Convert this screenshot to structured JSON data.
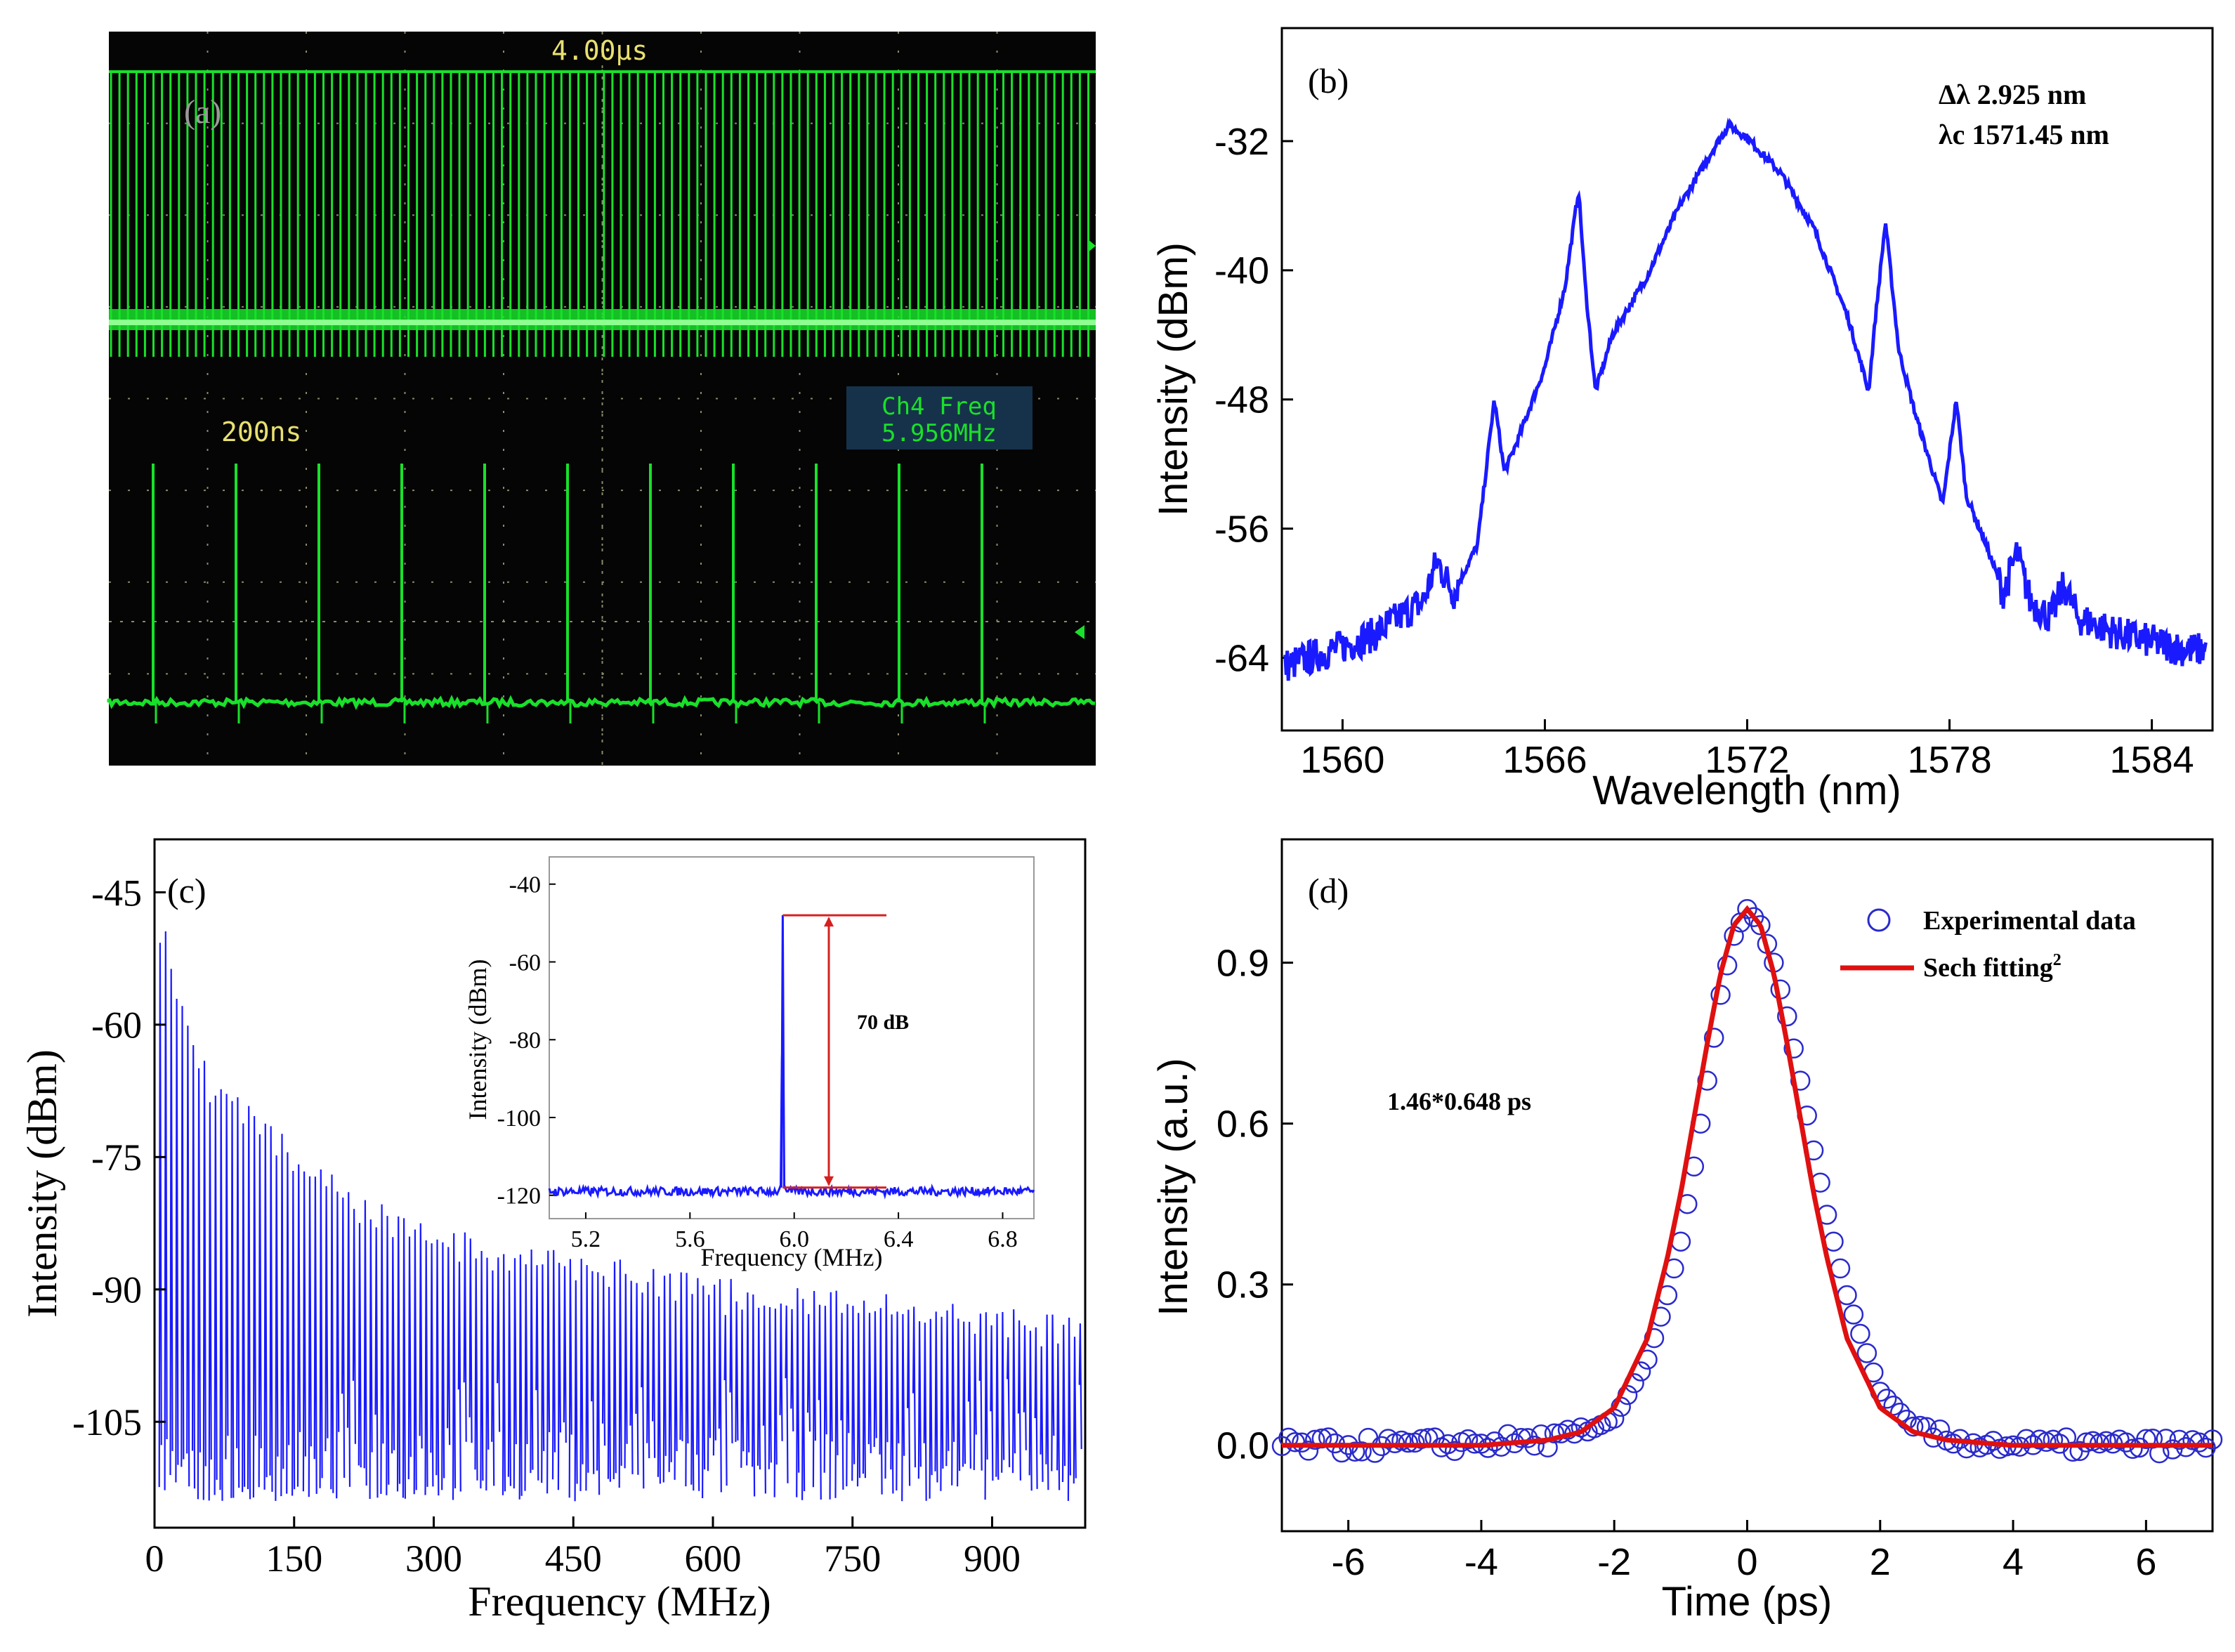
{
  "panels": {
    "a": {
      "label": "(a)",
      "top_timebase": "4.00µs",
      "bottom_timebase": "200ns",
      "freq_box": {
        "title": "Ch4 Freq",
        "value": "5.956MHz"
      },
      "colors": {
        "trace": "#19e02a",
        "background": "#050505",
        "grid": "#8a8a6a"
      },
      "type": "oscilloscope"
    },
    "b": {
      "label": "(b)",
      "annotations": [
        "Δλ 2.925 nm",
        "λc 1571.45 nm"
      ]
    },
    "c": {
      "label": "(c)",
      "inset_annotation": "70 dB"
    },
    "d": {
      "label": "(d)",
      "annotation": "1.46*0.648 ps"
    }
  },
  "chart_data": [
    {
      "id": "b",
      "type": "line",
      "xlabel": "Wavelength (nm)",
      "ylabel": "Intensity (dBm)",
      "xlim": [
        1558.2,
        1585.8
      ],
      "ylim": [
        -68.5,
        -25.0
      ],
      "x_ticks": [
        1560,
        1566,
        1572,
        1578,
        1584
      ],
      "y_ticks": [
        -64,
        -56,
        -48,
        -40,
        -32
      ],
      "series": [
        {
          "color": "#1a1aff",
          "x": [
            1558.3,
            1559.0,
            1560.0,
            1561.0,
            1561.8,
            1562.4,
            1562.8,
            1563.3,
            1564.0,
            1564.5,
            1564.8,
            1565.2,
            1566.0,
            1566.6,
            1567.0,
            1567.2,
            1567.5,
            1568.0,
            1569.0,
            1570.0,
            1571.0,
            1571.45,
            1572.0,
            1573.0,
            1574.0,
            1575.0,
            1575.6,
            1575.8,
            1576.1,
            1576.5,
            1577.0,
            1577.8,
            1578.2,
            1578.5,
            1579.0,
            1579.6,
            1580.0,
            1580.4,
            1581.0,
            1581.4,
            1581.8,
            1583.0,
            1584.0,
            1585.0,
            1585.6
          ],
          "y": [
            -64.5,
            -64.0,
            -63.3,
            -62.5,
            -61.3,
            -60.5,
            -58.0,
            -60.0,
            -57.0,
            -48.0,
            -52.5,
            -50.5,
            -46.0,
            -41.0,
            -35.0,
            -41.0,
            -47.5,
            -44.0,
            -40.5,
            -36.0,
            -32.5,
            -31.0,
            -31.8,
            -34.0,
            -37.5,
            -43.0,
            -47.5,
            -43.0,
            -37.0,
            -45.0,
            -49.0,
            -54.5,
            -48.0,
            -54.0,
            -56.5,
            -60.0,
            -57.5,
            -60.5,
            -61.5,
            -59.5,
            -61.5,
            -62.5,
            -63.0,
            -63.5,
            -63.5
          ]
        }
      ]
    },
    {
      "id": "c",
      "type": "line",
      "xlabel": "Frequency (MHz)",
      "ylabel": "Intensity (dBm)",
      "xlim": [
        0,
        1000
      ],
      "ylim": [
        -117,
        -39
      ],
      "x_ticks": [
        0,
        150,
        300,
        450,
        600,
        750,
        900
      ],
      "y_ticks": [
        -105,
        -90,
        -75,
        -60,
        -45
      ],
      "series": [
        {
          "color": "#1a1aff",
          "x": [
            5.956,
            50,
            100,
            200,
            300,
            400,
            500,
            600,
            700,
            800,
            900,
            1000
          ],
          "y": [
            -48,
            -65,
            -70,
            -79,
            -84,
            -86,
            -88,
            -90,
            -91,
            -92,
            -93,
            -94
          ]
        }
      ],
      "noise_floor": -114,
      "comb_spacing_mhz": 5.956
    },
    {
      "id": "c-inset",
      "type": "line",
      "xlabel": "Frequency (MHz)",
      "ylabel": "Intensity (dBm)",
      "xlim": [
        5.06,
        6.92
      ],
      "ylim": [
        -126,
        -33
      ],
      "x_ticks": [
        5.2,
        5.6,
        6.0,
        6.4,
        6.8
      ],
      "y_ticks": [
        -120,
        -100,
        -80,
        -60,
        -40
      ],
      "series": [
        {
          "color": "#1a1aff",
          "x": [
            5.06,
            5.5,
            5.94,
            5.95,
            5.956,
            5.96,
            5.97,
            6.4,
            6.92
          ],
          "y": [
            -119,
            -119,
            -119,
            -117,
            -48,
            -117,
            -119,
            -119,
            -119
          ]
        }
      ],
      "marker": {
        "color": "#d62020",
        "top": -48,
        "bottom": -118
      }
    },
    {
      "id": "d",
      "type": "line",
      "xlabel": "Time (ps)",
      "ylabel": "Intensity (a.u.)",
      "xlim": [
        -7,
        7
      ],
      "ylim": [
        -0.16,
        1.13
      ],
      "x_ticks": [
        -6,
        -4,
        -2,
        0,
        2,
        4,
        6
      ],
      "y_ticks": [
        0.0,
        0.3,
        0.6,
        0.9
      ],
      "series": [
        {
          "name": "Experimental data",
          "color": "#2a2acc",
          "marker": "circle",
          "x": [
            -7.0,
            -6.0,
            -5.0,
            -4.0,
            -3.0,
            -2.5,
            -2.0,
            -1.5,
            -1.2,
            -1.0,
            -0.8,
            -0.6,
            -0.4,
            -0.2,
            0.0,
            0.2,
            0.4,
            0.6,
            0.8,
            1.0,
            1.2,
            1.5,
            2.0,
            2.5,
            3.0,
            4.0,
            5.0,
            6.0,
            7.0
          ],
          "y": [
            0.0,
            0.0,
            0.0,
            0.005,
            0.01,
            0.02,
            0.05,
            0.16,
            0.28,
            0.38,
            0.52,
            0.68,
            0.84,
            0.95,
            1.0,
            0.97,
            0.9,
            0.8,
            0.68,
            0.55,
            0.43,
            0.28,
            0.1,
            0.035,
            0.01,
            0.0,
            0.0,
            0.0,
            0.0
          ]
        },
        {
          "name": "Sech fitting",
          "superscript": "2",
          "color": "#e01010",
          "x": [
            -7.0,
            -6.0,
            -5.0,
            -4.0,
            -3.0,
            -2.5,
            -2.0,
            -1.5,
            -1.2,
            -1.0,
            -0.8,
            -0.6,
            -0.4,
            -0.2,
            0.0,
            0.2,
            0.4,
            0.6,
            0.8,
            1.0,
            1.2,
            1.5,
            2.0,
            2.5,
            3.0,
            4.0,
            5.0,
            6.0,
            7.0
          ],
          "y": [
            0.0,
            0.0,
            0.0,
            0.0,
            0.01,
            0.025,
            0.07,
            0.2,
            0.35,
            0.47,
            0.61,
            0.75,
            0.88,
            0.97,
            1.0,
            0.97,
            0.88,
            0.75,
            0.61,
            0.47,
            0.35,
            0.2,
            0.07,
            0.025,
            0.01,
            0.0,
            0.0,
            0.0,
            0.0
          ]
        }
      ]
    }
  ]
}
